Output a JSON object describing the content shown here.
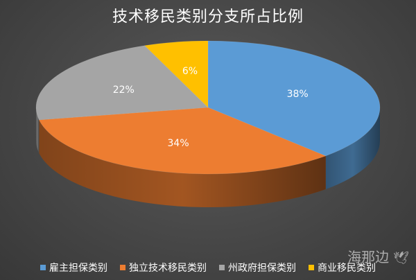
{
  "chart_data": {
    "type": "pie",
    "title": "技术移民类别分支所占比例",
    "categories": [
      "雇主担保类别",
      "独立技术移民类别",
      "州政府担保类别",
      "商业移民类别"
    ],
    "values": [
      38,
      34,
      22,
      6
    ],
    "value_labels": [
      "38%",
      "34%",
      "22%",
      "6%"
    ],
    "colors": [
      "#5b9bd5",
      "#ed7d31",
      "#a5a5a5",
      "#ffc000"
    ],
    "legend_position": "bottom"
  },
  "watermark": {
    "text": "海那边"
  }
}
